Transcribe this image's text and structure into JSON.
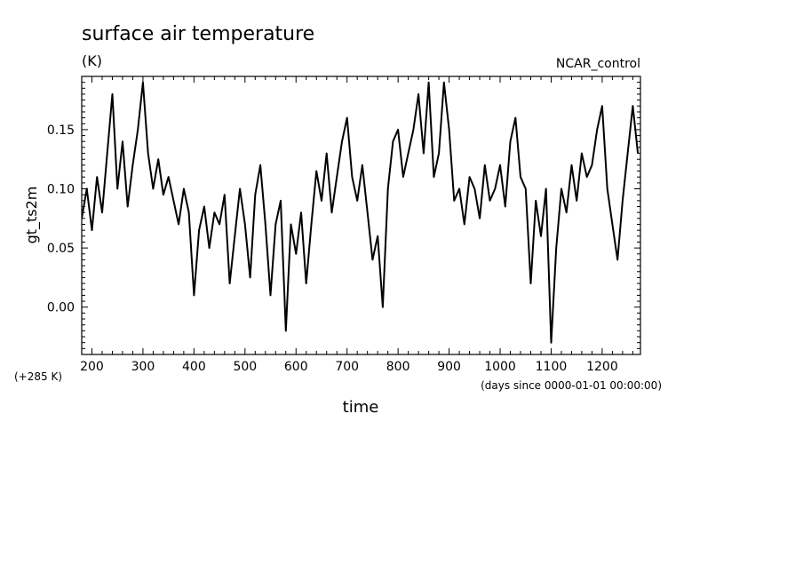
{
  "chart_data": {
    "type": "line",
    "title": "surface air temperature",
    "units": "(K)",
    "dataset": "NCAR_control",
    "xlabel": "time",
    "xunits": "(days since 0000-01-01 00:00:00)",
    "ylabel": "gt_ts2m",
    "yoffset": "(+285 K)",
    "xlim": [
      180,
      1275
    ],
    "ylim": [
      -0.04,
      0.195
    ],
    "xticks": [
      200,
      300,
      400,
      500,
      600,
      700,
      800,
      900,
      1000,
      1100,
      1200
    ],
    "xtick_labels": [
      "200",
      "300",
      "400",
      "500",
      "600",
      "700",
      "800",
      "900",
      "1000",
      "1100",
      "1200"
    ],
    "yticks": [
      0.0,
      0.05,
      0.1,
      0.15
    ],
    "ytick_labels": [
      "0.00",
      "0.05",
      "0.10",
      "0.15"
    ],
    "grid": false,
    "color": "#000000",
    "series": [
      {
        "x": [
          180,
          190,
          200,
          210,
          220,
          230,
          240,
          250,
          260,
          270,
          280,
          290,
          300,
          310,
          320,
          330,
          340,
          350,
          360,
          370,
          380,
          390,
          400,
          410,
          420,
          430,
          440,
          450,
          460,
          470,
          480,
          490,
          500,
          510,
          520,
          530,
          540,
          550,
          560,
          570,
          580,
          590,
          600,
          610,
          620,
          630,
          640,
          650,
          660,
          670,
          680,
          690,
          700,
          710,
          720,
          730,
          740,
          750,
          760,
          770,
          780,
          790,
          800,
          810,
          820,
          830,
          840,
          850,
          860,
          870,
          880,
          890,
          900,
          910,
          920,
          930,
          940,
          950,
          960,
          970,
          980,
          990,
          1000,
          1010,
          1020,
          1030,
          1040,
          1050,
          1060,
          1070,
          1080,
          1090,
          1100,
          1110,
          1120,
          1130,
          1140,
          1150,
          1160,
          1170,
          1180,
          1190,
          1200,
          1210,
          1220,
          1230,
          1240,
          1250,
          1260,
          1270
        ],
        "values": [
          0.075,
          0.1,
          0.065,
          0.11,
          0.08,
          0.13,
          0.18,
          0.1,
          0.14,
          0.085,
          0.12,
          0.15,
          0.19,
          0.13,
          0.1,
          0.125,
          0.095,
          0.11,
          0.09,
          0.07,
          0.1,
          0.08,
          0.01,
          0.065,
          0.085,
          0.05,
          0.08,
          0.07,
          0.095,
          0.02,
          0.06,
          0.1,
          0.07,
          0.025,
          0.095,
          0.12,
          0.07,
          0.01,
          0.07,
          0.09,
          -0.02,
          0.07,
          0.045,
          0.08,
          0.02,
          0.07,
          0.115,
          0.09,
          0.13,
          0.08,
          0.11,
          0.14,
          0.16,
          0.11,
          0.09,
          0.12,
          0.08,
          0.04,
          0.06,
          0.0,
          0.1,
          0.14,
          0.15,
          0.11,
          0.13,
          0.15,
          0.18,
          0.13,
          0.19,
          0.11,
          0.13,
          0.19,
          0.15,
          0.09,
          0.1,
          0.07,
          0.11,
          0.1,
          0.075,
          0.12,
          0.09,
          0.1,
          0.12,
          0.085,
          0.14,
          0.16,
          0.11,
          0.1,
          0.02,
          0.09,
          0.06,
          0.1,
          -0.03,
          0.05,
          0.1,
          0.08,
          0.12,
          0.09,
          0.13,
          0.11,
          0.12,
          0.15,
          0.17,
          0.1,
          0.07,
          0.04,
          0.09,
          0.13,
          0.17,
          0.13
        ]
      }
    ]
  }
}
